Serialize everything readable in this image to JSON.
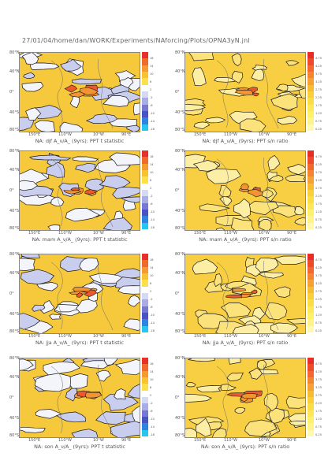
{
  "header": "27/01/04/home/dan/WORK/Experiments/NAforcing/Plots/OPNA3yN.jnl",
  "lat_labels": [
    "80°N",
    "40°N",
    "0°",
    "40°S",
    "80°S"
  ],
  "lon_labels": [
    "150°E",
    "110°W",
    "10°W",
    "90°E"
  ],
  "panels": [
    {
      "season": "djf",
      "kind": "t",
      "caption": "NA: djf A_ν/A_ (9yrs): PPT t statistic"
    },
    {
      "season": "djf",
      "kind": "sn",
      "caption": "NA: djf A_ν/A_ (9yrs): PPT s/n ratio"
    },
    {
      "season": "mam",
      "kind": "t",
      "caption": "NA: mam A_ν/A_ (9yrs): PPT t statistic"
    },
    {
      "season": "mam",
      "kind": "sn",
      "caption": "NA: mam A_ν/A_ (9yrs): PPT s/n ratio"
    },
    {
      "season": "jja",
      "kind": "t",
      "caption": "NA: jja A_ν/A_ (9yrs): PPT t statistic"
    },
    {
      "season": "jja",
      "kind": "sn",
      "caption": "NA: jja A_ν/A_ (9yrs): PPT s/n ratio"
    },
    {
      "season": "son",
      "kind": "t",
      "caption": "NA: son A_ν/A_ (9yrs): PPT t statistic"
    },
    {
      "season": "son",
      "kind": "sn",
      "caption": "NA: son A_ν/A_ (9yrs): PPT s/n ratio"
    }
  ],
  "colorbar_t": {
    "labels": [
      "18",
      "14",
      "10",
      "6",
      "2",
      "-2",
      "-6",
      "-10",
      "-14",
      "-18"
    ],
    "colors": [
      "#e8302a",
      "#f06a2c",
      "#f59a2e",
      "#f8c232",
      "#fbe04a",
      "#ffffff",
      "#d6d9f2",
      "#a9ace6",
      "#7778d6",
      "#4a53c6",
      "#2e84e0",
      "#26c6f0"
    ]
  },
  "colorbar_sn": {
    "labels": [
      "4.75",
      "4.25",
      "3.75",
      "3.25",
      "2.75",
      "2.25",
      "1.75",
      "1.25",
      "0.75",
      "0.25"
    ],
    "colors": [
      "#e82c28",
      "#ee4a2c",
      "#f2682e",
      "#f48630",
      "#f6a232",
      "#f8bc34",
      "#f9cf3a",
      "#fbde46",
      "#fce858",
      "#fdf06c",
      "#fef48a",
      "#fef8b0"
    ]
  }
}
